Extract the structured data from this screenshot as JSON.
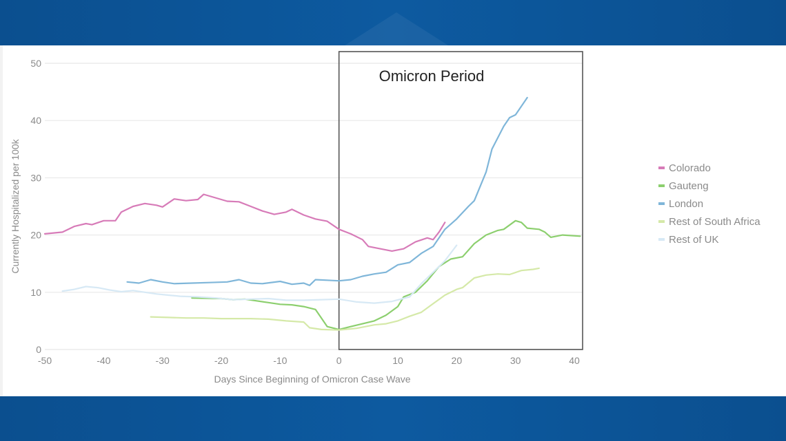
{
  "chart_data": {
    "type": "line",
    "title": "",
    "xlabel": "Days Since Beginning of Omicron Case Wave",
    "ylabel": "Currently Hospitalized per 100k",
    "xlim": [
      -50,
      41
    ],
    "ylim": [
      0,
      50
    ],
    "xticks": [
      -50,
      -40,
      -30,
      -20,
      -10,
      0,
      10,
      20,
      30,
      40
    ],
    "yticks": [
      0,
      10,
      20,
      30,
      40,
      50
    ],
    "grid": true,
    "legend_position": "right",
    "annotation": {
      "label": "Omicron Period",
      "x_start": 0,
      "x_end": 41
    },
    "series": [
      {
        "name": "Colorado",
        "color": "#d77bb8",
        "points": [
          [
            -50,
            20.2
          ],
          [
            -47,
            20.5
          ],
          [
            -45,
            21.5
          ],
          [
            -43,
            22.0
          ],
          [
            -42,
            21.8
          ],
          [
            -40,
            22.5
          ],
          [
            -38,
            22.5
          ],
          [
            -37,
            24.0
          ],
          [
            -35,
            25.0
          ],
          [
            -33,
            25.5
          ],
          [
            -31,
            25.2
          ],
          [
            -30,
            24.9
          ],
          [
            -28,
            26.3
          ],
          [
            -26,
            26.0
          ],
          [
            -24,
            26.2
          ],
          [
            -23,
            27.1
          ],
          [
            -21,
            26.5
          ],
          [
            -19,
            25.9
          ],
          [
            -17,
            25.8
          ],
          [
            -15,
            25.0
          ],
          [
            -13,
            24.2
          ],
          [
            -11,
            23.6
          ],
          [
            -9,
            24.0
          ],
          [
            -8,
            24.5
          ],
          [
            -6,
            23.5
          ],
          [
            -4,
            22.8
          ],
          [
            -2,
            22.4
          ],
          [
            0,
            21.0
          ],
          [
            2,
            20.2
          ],
          [
            4,
            19.2
          ],
          [
            5,
            18.0
          ],
          [
            7,
            17.6
          ],
          [
            9,
            17.2
          ],
          [
            11,
            17.6
          ],
          [
            13,
            18.8
          ],
          [
            15,
            19.5
          ],
          [
            16,
            19.2
          ],
          [
            17,
            20.5
          ],
          [
            18,
            22.2
          ]
        ]
      },
      {
        "name": "Gauteng",
        "color": "#8ccf6e",
        "points": [
          [
            -25,
            9.0
          ],
          [
            -20,
            8.9
          ],
          [
            -18,
            8.7
          ],
          [
            -16,
            8.8
          ],
          [
            -14,
            8.5
          ],
          [
            -12,
            8.2
          ],
          [
            -10,
            7.9
          ],
          [
            -8,
            7.8
          ],
          [
            -6,
            7.5
          ],
          [
            -4,
            7.0
          ],
          [
            -3,
            5.5
          ],
          [
            -2,
            4.0
          ],
          [
            0,
            3.5
          ],
          [
            2,
            4.0
          ],
          [
            4,
            4.5
          ],
          [
            6,
            5.0
          ],
          [
            8,
            6.0
          ],
          [
            10,
            7.5
          ],
          [
            11,
            9.2
          ],
          [
            13,
            10.0
          ],
          [
            15,
            12.0
          ],
          [
            17,
            14.5
          ],
          [
            19,
            15.8
          ],
          [
            21,
            16.2
          ],
          [
            23,
            18.5
          ],
          [
            25,
            20.0
          ],
          [
            27,
            20.8
          ],
          [
            28,
            21.0
          ],
          [
            30,
            22.5
          ],
          [
            31,
            22.2
          ],
          [
            32,
            21.2
          ],
          [
            34,
            21.0
          ],
          [
            35,
            20.5
          ],
          [
            36,
            19.6
          ],
          [
            38,
            20.0
          ],
          [
            41,
            19.8
          ]
        ]
      },
      {
        "name": "London",
        "color": "#7fb6d9",
        "points": [
          [
            -36,
            11.8
          ],
          [
            -34,
            11.6
          ],
          [
            -32,
            12.2
          ],
          [
            -30,
            11.8
          ],
          [
            -28,
            11.5
          ],
          [
            -25,
            11.6
          ],
          [
            -22,
            11.7
          ],
          [
            -19,
            11.8
          ],
          [
            -17,
            12.2
          ],
          [
            -15,
            11.6
          ],
          [
            -13,
            11.5
          ],
          [
            -10,
            11.9
          ],
          [
            -8,
            11.4
          ],
          [
            -6,
            11.6
          ],
          [
            -5,
            11.2
          ],
          [
            -4,
            12.2
          ],
          [
            -2,
            12.1
          ],
          [
            0,
            12.0
          ],
          [
            2,
            12.2
          ],
          [
            4,
            12.8
          ],
          [
            6,
            13.2
          ],
          [
            8,
            13.5
          ],
          [
            10,
            14.8
          ],
          [
            12,
            15.2
          ],
          [
            14,
            16.8
          ],
          [
            16,
            18.0
          ],
          [
            18,
            21.0
          ],
          [
            20,
            22.8
          ],
          [
            22,
            25.0
          ],
          [
            23,
            26.0
          ],
          [
            25,
            31.0
          ],
          [
            26,
            35.0
          ],
          [
            28,
            39.0
          ],
          [
            29,
            40.5
          ],
          [
            30,
            41.0
          ],
          [
            32,
            44.0
          ]
        ]
      },
      {
        "name": "Rest of South Africa",
        "color": "#d5e9a8",
        "points": [
          [
            -32,
            5.7
          ],
          [
            -29,
            5.6
          ],
          [
            -26,
            5.5
          ],
          [
            -23,
            5.5
          ],
          [
            -20,
            5.4
          ],
          [
            -15,
            5.4
          ],
          [
            -12,
            5.3
          ],
          [
            -9,
            5.0
          ],
          [
            -6,
            4.8
          ],
          [
            -5,
            3.8
          ],
          [
            -3,
            3.5
          ],
          [
            0,
            3.4
          ],
          [
            3,
            3.7
          ],
          [
            6,
            4.3
          ],
          [
            8,
            4.5
          ],
          [
            10,
            5.0
          ],
          [
            12,
            5.8
          ],
          [
            14,
            6.5
          ],
          [
            16,
            8.0
          ],
          [
            18,
            9.5
          ],
          [
            20,
            10.5
          ],
          [
            21,
            10.8
          ],
          [
            23,
            12.5
          ],
          [
            25,
            13.0
          ],
          [
            27,
            13.2
          ],
          [
            29,
            13.1
          ],
          [
            31,
            13.8
          ],
          [
            33,
            14.0
          ],
          [
            34,
            14.2
          ]
        ]
      },
      {
        "name": "Rest of UK",
        "color": "#d7e9f5",
        "points": [
          [
            -47,
            10.2
          ],
          [
            -45,
            10.5
          ],
          [
            -43,
            11.0
          ],
          [
            -41,
            10.8
          ],
          [
            -39,
            10.4
          ],
          [
            -37,
            10.1
          ],
          [
            -35,
            10.3
          ],
          [
            -33,
            10.0
          ],
          [
            -31,
            9.7
          ],
          [
            -29,
            9.5
          ],
          [
            -27,
            9.3
          ],
          [
            -24,
            9.2
          ],
          [
            -21,
            9.0
          ],
          [
            -18,
            8.7
          ],
          [
            -15,
            8.8
          ],
          [
            -12,
            8.9
          ],
          [
            -9,
            8.6
          ],
          [
            -6,
            8.6
          ],
          [
            -3,
            8.7
          ],
          [
            0,
            8.8
          ],
          [
            3,
            8.3
          ],
          [
            6,
            8.1
          ],
          [
            9,
            8.4
          ],
          [
            12,
            9.2
          ],
          [
            14,
            11.5
          ],
          [
            16,
            13.5
          ],
          [
            18,
            15.5
          ],
          [
            20,
            18.2
          ]
        ]
      }
    ]
  }
}
